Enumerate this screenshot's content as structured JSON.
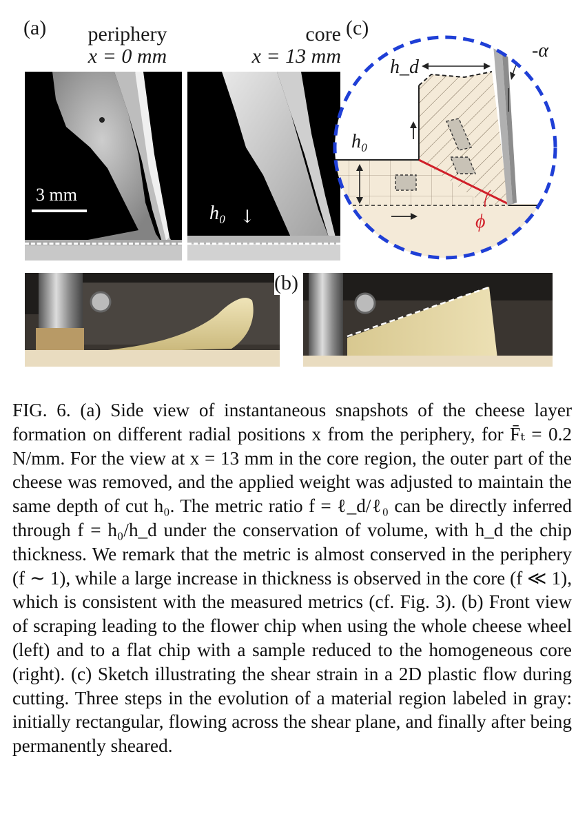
{
  "panel_a": {
    "label": "(a)",
    "left_header_line1": "periphery",
    "left_header_line2": "x = 0 mm",
    "right_header_line1": "core",
    "right_header_line2": "x = 13 mm",
    "scalebar_label": "3 mm",
    "depth_label": "h₀"
  },
  "panel_b": {
    "label": "(b)"
  },
  "panel_c": {
    "label": "(c)",
    "hd_label": "h_d",
    "h0_label": "h₀",
    "alpha_label": "-α",
    "phi_label": "ϕ"
  },
  "caption": {
    "text": "FIG. 6.   (a) Side view of instantaneous snapshots of the cheese layer formation on different radial positions x from the periphery, for F̄ₜ = 0.2 N/mm. For the view at x = 13 mm in the core region, the outer part of the cheese was removed, and the applied weight was adjusted to maintain the same depth of cut h₀. The metric ratio f = ℓ_d/ℓ₀ can be directly inferred through f = h₀/h_d under the conservation of volume, with h_d the chip thickness. We remark that the metric is almost conserved in the periphery (f ∼ 1), while a large increase in thickness is observed in the core (f ≪ 1), which is consistent with the measured metrics (cf. Fig. 3). (b) Front view of scraping leading to the flower chip when using the whole cheese wheel (left) and to a flat chip with a sample reduced to the homogeneous core (right). (c) Sketch illustrating the shear strain in a 2D plastic flow during cutting. Three steps in the evolution of a material region labeled in gray: initially rectangular, flowing across the shear plane, and finally after being permanently sheared."
  },
  "colors": {
    "circle_dashed": "#1f3fd6",
    "shear_plane": "#d0202a",
    "cheese_fill": "#f4ead8",
    "tool_gray": "#b0b0b0"
  }
}
